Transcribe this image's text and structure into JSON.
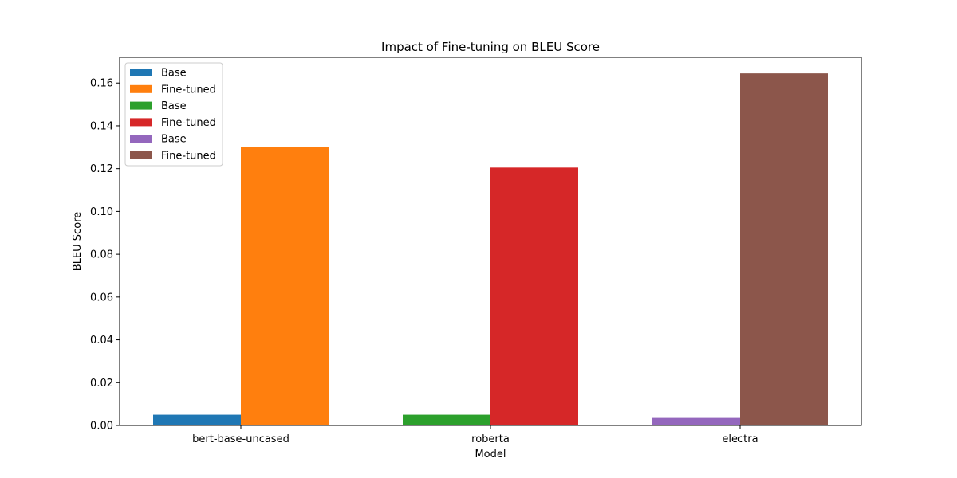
{
  "chart_data": {
    "type": "bar",
    "title": "Impact of Fine-tuning on BLEU Score",
    "xlabel": "Model",
    "ylabel": "BLEU Score",
    "categories": [
      "bert-base-uncased",
      "roberta",
      "electra"
    ],
    "ylim": [
      0,
      0.172
    ],
    "yticks": [
      "0.00",
      "0.02",
      "0.04",
      "0.06",
      "0.08",
      "0.10",
      "0.12",
      "0.14",
      "0.16"
    ],
    "grid": false,
    "legend_position": "top-left",
    "bars": [
      {
        "name": "Base",
        "category": "bert-base-uncased",
        "value": 0.005,
        "slot": "left",
        "color": "#1f77b4"
      },
      {
        "name": "Fine-tuned",
        "category": "bert-base-uncased",
        "value": 0.13,
        "slot": "right",
        "color": "#ff7f0e"
      },
      {
        "name": "Base",
        "category": "roberta",
        "value": 0.005,
        "slot": "left",
        "color": "#2ca02c"
      },
      {
        "name": "Fine-tuned",
        "category": "roberta",
        "value": 0.1205,
        "slot": "right",
        "color": "#d62728"
      },
      {
        "name": "Base",
        "category": "electra",
        "value": 0.0035,
        "slot": "left",
        "color": "#9467bd"
      },
      {
        "name": "Fine-tuned",
        "category": "electra",
        "value": 0.1645,
        "slot": "right",
        "color": "#8c564b"
      }
    ],
    "legend": [
      {
        "label": "Base",
        "color": "#1f77b4"
      },
      {
        "label": "Fine-tuned",
        "color": "#ff7f0e"
      },
      {
        "label": "Base",
        "color": "#2ca02c"
      },
      {
        "label": "Fine-tuned",
        "color": "#d62728"
      },
      {
        "label": "Base",
        "color": "#9467bd"
      },
      {
        "label": "Fine-tuned",
        "color": "#8c564b"
      }
    ]
  }
}
